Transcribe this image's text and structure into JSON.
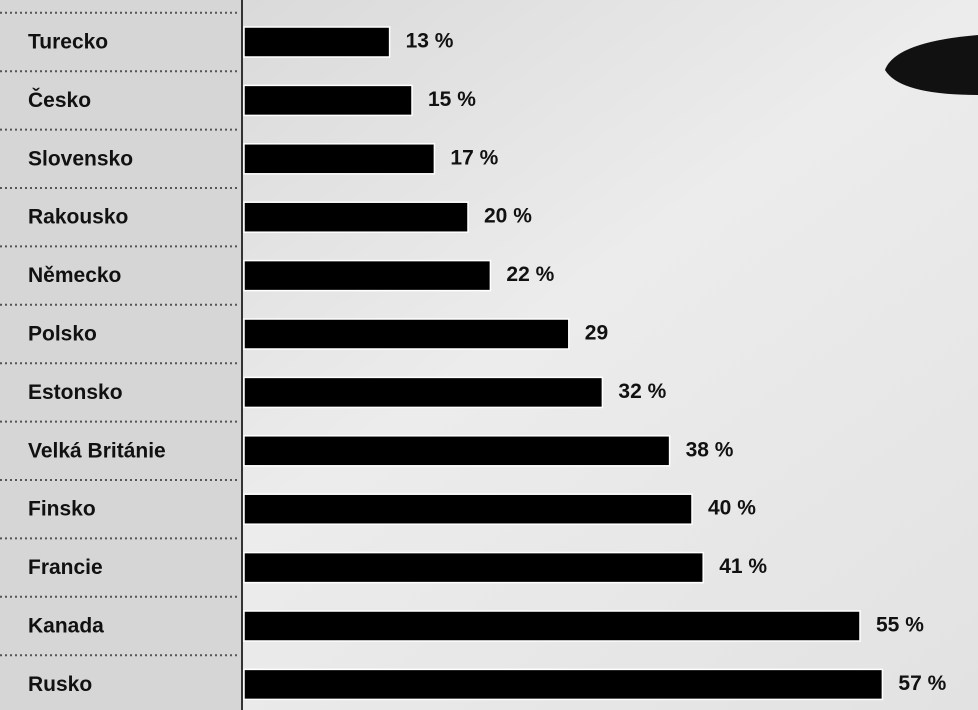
{
  "chart_data": {
    "type": "bar",
    "orientation": "horizontal",
    "categories": [
      "Turecko",
      "Česko",
      "Slovensko",
      "Rakousko",
      "Německo",
      "Polsko",
      "Estonsko",
      "Velká Británie",
      "Finsko",
      "Francie",
      "Kanada",
      "Rusko"
    ],
    "values": [
      13,
      15,
      17,
      20,
      22,
      29,
      32,
      38,
      40,
      41,
      55,
      57
    ],
    "value_labels": [
      "13 %",
      "15 %",
      "17 %",
      "20 %",
      "22 %",
      "29",
      "32 %",
      "38 %",
      "40 %",
      "41 %",
      "55 %",
      "57 %"
    ],
    "color": "#000000"
  }
}
